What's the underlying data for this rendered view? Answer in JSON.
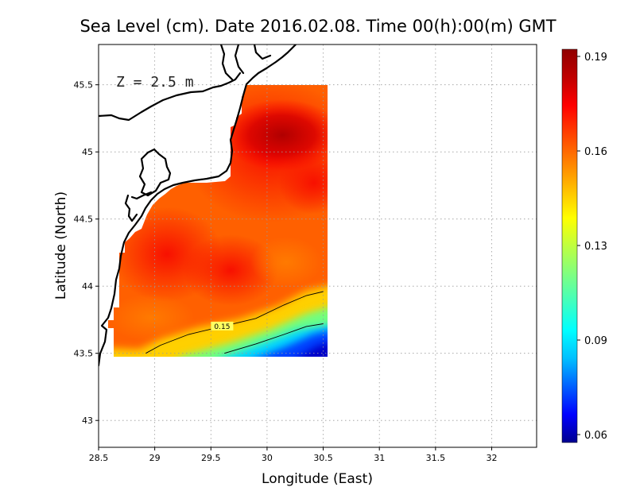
{
  "title": "Sea Level (cm). Date 2016.02.08. Time 00(h):00(m) GMT",
  "depth_label": "Z = 2.5 m",
  "chart_data": {
    "type": "heatmap",
    "title": "Sea Level (cm). Date 2016.02.08. Time 00(h):00(m) GMT",
    "xlabel": "Longitude (East)",
    "ylabel": "Latitude (North)",
    "xlim": [
      28.5,
      32.4
    ],
    "ylim": [
      42.8,
      45.8
    ],
    "xticks": [
      "28.5",
      "29",
      "29.5",
      "30",
      "30.5",
      "31",
      "31.5",
      "32"
    ],
    "yticks": [
      "43",
      "43.5",
      "44",
      "44.5",
      "45",
      "45.5"
    ],
    "grid": true,
    "contours": [
      {
        "level": "0.15",
        "label": "0.15",
        "points": [
          [
            28.92,
            43.5
          ],
          [
            29.05,
            43.56
          ],
          [
            29.3,
            43.64
          ],
          [
            29.6,
            43.7
          ],
          [
            29.9,
            43.76
          ],
          [
            30.15,
            43.86
          ],
          [
            30.35,
            43.93
          ],
          [
            30.5,
            43.96
          ]
        ]
      },
      {
        "level": "0.13",
        "label": "",
        "points": [
          [
            29.62,
            43.5
          ],
          [
            29.9,
            43.57
          ],
          [
            30.15,
            43.64
          ],
          [
            30.35,
            43.7
          ],
          [
            30.5,
            43.72
          ]
        ]
      }
    ],
    "colorbar": {
      "min": 0.06,
      "max": 0.19,
      "ticks": [
        "0.19",
        "0.16",
        "0.13",
        "0.09",
        "0.06"
      ],
      "colors": [
        "#00008f",
        "#0000ff",
        "#0060ff",
        "#00bfff",
        "#00ffff",
        "#40ffbf",
        "#80ff80",
        "#bfff40",
        "#ffff00",
        "#ffbf00",
        "#ff8000",
        "#ff4000",
        "#ff0000",
        "#bf0000",
        "#8f0000"
      ]
    },
    "field_samples": [
      {
        "lon": 30.0,
        "lat": 45.15,
        "value": 0.188
      },
      {
        "lon": 29.6,
        "lat": 44.4,
        "value": 0.176
      },
      {
        "lon": 30.1,
        "lat": 44.2,
        "value": 0.168
      },
      {
        "lon": 29.4,
        "lat": 43.8,
        "value": 0.163
      },
      {
        "lon": 30.2,
        "lat": 43.7,
        "value": 0.135
      },
      {
        "lon": 30.45,
        "lat": 43.55,
        "value": 0.07
      }
    ]
  }
}
